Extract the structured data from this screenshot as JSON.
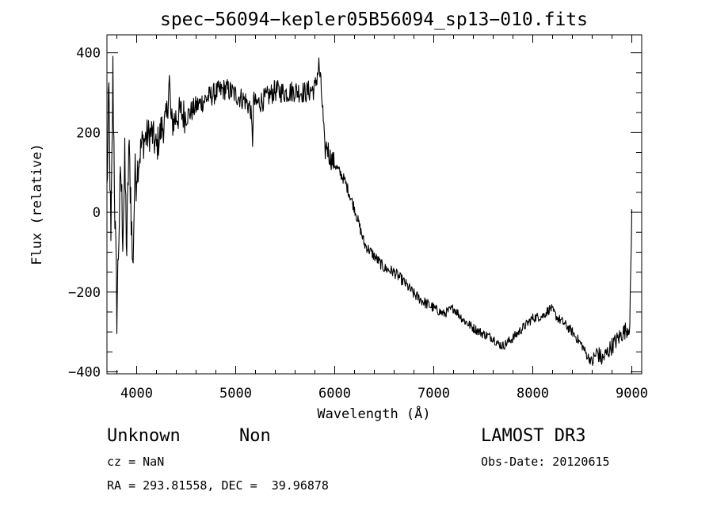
{
  "chart_data": {
    "type": "line",
    "title": "spec−56094−kepler05B56094_sp13−010.fits",
    "xlabel": "Wavelength (Å)",
    "ylabel": "Flux (relative)",
    "xlim": [
      3700,
      9100
    ],
    "ylim": [
      -405,
      445
    ],
    "x_ticks": [
      4000,
      5000,
      6000,
      7000,
      8000,
      9000
    ],
    "x_tick_labels": [
      "4000",
      "5000",
      "6000",
      "7000",
      "8000",
      "9000"
    ],
    "y_ticks": [
      -400,
      -200,
      0,
      200,
      400
    ],
    "y_tick_labels": [
      "−400",
      "−200",
      "0",
      "200",
      "400"
    ],
    "grid": false,
    "series": [
      {
        "name": "spectrum",
        "x": [
          3700,
          3720,
          3740,
          3760,
          3780,
          3800,
          3820,
          3840,
          3860,
          3880,
          3900,
          3920,
          3940,
          3960,
          3980,
          4000,
          4050,
          4100,
          4150,
          4200,
          4250,
          4300,
          4330,
          4350,
          4400,
          4450,
          4500,
          4600,
          4700,
          4800,
          4900,
          5000,
          5100,
          5150,
          5170,
          5180,
          5200,
          5300,
          5400,
          5500,
          5600,
          5700,
          5800,
          5840,
          5860,
          5880,
          5900,
          5920,
          5950,
          6000,
          6100,
          6200,
          6300,
          6400,
          6500,
          6600,
          6700,
          6800,
          6900,
          7000,
          7100,
          7200,
          7300,
          7400,
          7500,
          7600,
          7650,
          7700,
          7800,
          7900,
          8000,
          8100,
          8180,
          8250,
          8300,
          8400,
          8500,
          8550,
          8600,
          8650,
          8700,
          8800,
          8900,
          8980,
          9000
        ],
        "y": [
          50,
          300,
          -100,
          350,
          0,
          -250,
          -50,
          100,
          -50,
          120,
          -100,
          160,
          50,
          -150,
          80,
          100,
          170,
          190,
          200,
          160,
          210,
          230,
          330,
          220,
          240,
          250,
          240,
          265,
          285,
          300,
          310,
          295,
          280,
          260,
          180,
          280,
          270,
          285,
          305,
          300,
          305,
          300,
          310,
          370,
          320,
          250,
          150,
          170,
          140,
          120,
          80,
          10,
          -80,
          -110,
          -140,
          -150,
          -175,
          -205,
          -225,
          -240,
          -255,
          -240,
          -270,
          -290,
          -305,
          -315,
          -330,
          -335,
          -315,
          -290,
          -265,
          -260,
          -240,
          -265,
          -275,
          -300,
          -335,
          -360,
          -375,
          -350,
          -370,
          -335,
          -305,
          -285,
          0
        ]
      }
    ]
  },
  "info": {
    "object_class": "Unknown",
    "object_subclass": "Non",
    "redshift": "cz = NaN",
    "coords": "RA = 293.81558, DEC =  39.96878",
    "survey": "LAMOST DR3",
    "obs_date": "Obs-Date: 20120615"
  }
}
